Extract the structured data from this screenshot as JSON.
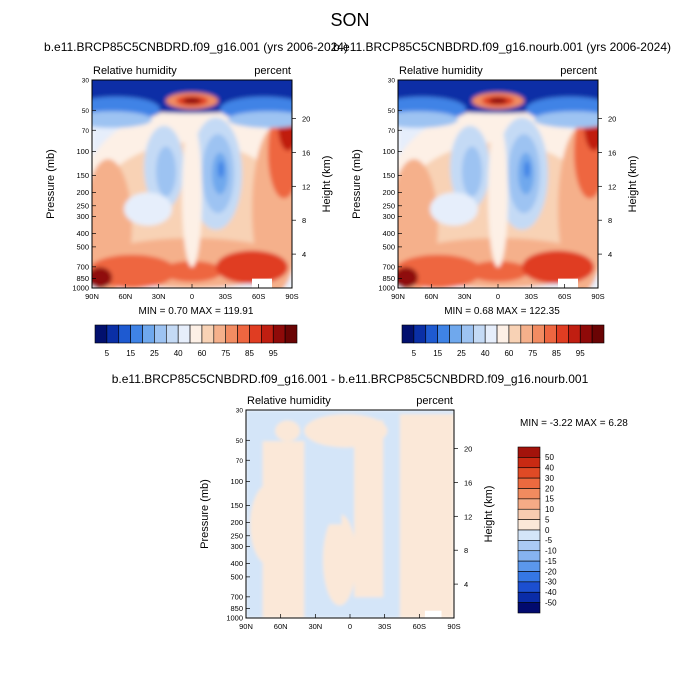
{
  "title": "SON",
  "colors": {
    "abs_levels": [
      "#02106e",
      "#0a2fa6",
      "#1e5ad1",
      "#3f83e6",
      "#6fa8ed",
      "#9dc3f2",
      "#c4daf5",
      "#e6eefb",
      "#fdf0e6",
      "#f8d2b5",
      "#f5b08b",
      "#f28c62",
      "#ee6640",
      "#e03d22",
      "#c01e11",
      "#8f0a09",
      "#6a0404"
    ],
    "diff_levels": [
      "#020a6e",
      "#0a2ca8",
      "#1c4fd0",
      "#3577e5",
      "#5b97ec",
      "#86b3f0",
      "#aacaf4",
      "#d4e5f8",
      "#fbe8d8",
      "#f8cbb0",
      "#f5ab86",
      "#f18b5f",
      "#ec6a3f",
      "#e04a25",
      "#c92a13",
      "#a3130b",
      "#7a0707"
    ],
    "frame": "#000000"
  },
  "panels": [
    {
      "id": "left",
      "case_title": "b.e11.BRCP85C5CNBDRD.f09_g16.001 (yrs 2006-2024)",
      "var_label": "Relative humidity",
      "units": "percent",
      "ylabel": "Pressure (mb)",
      "ylabel_right": "Height (km)",
      "stats": "MIN =   0.70  MAX = 119.91",
      "labelbar": [
        "5",
        "15",
        "25",
        "40",
        "60",
        "75",
        "85",
        "95"
      ]
    },
    {
      "id": "right",
      "case_title": "b.e11.BRCP85C5CNBDRD.f09_g16.nourb.001 (yrs 2006-2024)",
      "var_label": "Relative humidity",
      "units": "percent",
      "ylabel": "Pressure (mb)",
      "ylabel_right": "Height (km)",
      "stats": "MIN =   0.68  MAX = 122.35",
      "labelbar": [
        "5",
        "15",
        "25",
        "40",
        "60",
        "75",
        "85",
        "95"
      ]
    },
    {
      "id": "diff",
      "case_title": "b.e11.BRCP85C5CNBDRD.f09_g16.001 - b.e11.BRCP85C5CNBDRD.f09_g16.nourb.001",
      "var_label": "Relative humidity",
      "units": "percent",
      "ylabel": "Pressure (mb)",
      "ylabel_right": "Height (km)",
      "stats": "MIN =  -3.22  MAX =   6.28",
      "labelbar": [
        "50",
        "40",
        "30",
        "20",
        "15",
        "10",
        "5",
        "0",
        "-5",
        "-10",
        "-15",
        "-20",
        "-30",
        "-40",
        "-50"
      ]
    }
  ],
  "chart_data": {
    "type": "heatmap",
    "x_ticks": [
      "90N",
      "60N",
      "30N",
      "0",
      "30S",
      "60S",
      "90S"
    ],
    "x_range": [
      90,
      -90
    ],
    "pressure_ticks": [
      "30",
      "50",
      "70",
      "100",
      "150",
      "200",
      "250",
      "300",
      "400",
      "500",
      "700",
      "850",
      "1000"
    ],
    "pressure_range": [
      1000,
      30
    ],
    "y_scale": "log",
    "height_ticks": [
      "4",
      "8",
      "12",
      "16",
      "20"
    ],
    "height_values_km": [
      4,
      8,
      12,
      16,
      20
    ],
    "abs_levels": [
      5,
      10,
      15,
      20,
      25,
      30,
      40,
      50,
      60,
      70,
      75,
      80,
      85,
      90,
      95,
      100
    ],
    "diff_levels": [
      -50,
      -40,
      -30,
      -20,
      -15,
      -10,
      -5,
      0,
      5,
      10,
      15,
      20,
      30,
      40,
      50
    ],
    "panels": [
      {
        "id": "left",
        "min": 0.7,
        "max": 119.91
      },
      {
        "id": "right",
        "min": 0.68,
        "max": 122.35
      },
      {
        "id": "diff",
        "min": -3.22,
        "max": 6.28
      }
    ]
  }
}
